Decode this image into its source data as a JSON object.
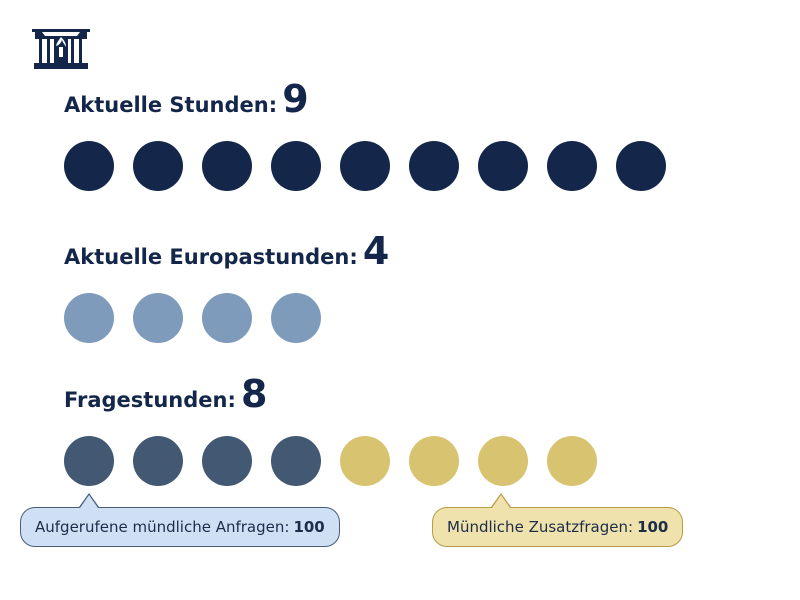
{
  "colors": {
    "navy": "#14274a",
    "light_blue": "#7f9bbb",
    "slate": "#435873",
    "gold": "#d8c371",
    "callout_blue_fill": "#cfe0f4",
    "callout_blue_border": "#4a5c79",
    "callout_gold_fill": "#efe2ac",
    "callout_gold_border": "#b79b45"
  },
  "icons": {
    "logo": "parliament-building-icon"
  },
  "chart_data": {
    "type": "dot-matrix",
    "sections": [
      {
        "label": "Aktuelle Stunden:",
        "value": 9,
        "groups": [
          {
            "count": 9,
            "color": "#14274a"
          }
        ]
      },
      {
        "label": "Aktuelle Europastunden:",
        "value": 4,
        "groups": [
          {
            "count": 4,
            "color": "#7f9bbb"
          }
        ]
      },
      {
        "label": "Fragestunden:",
        "value": 8,
        "groups": [
          {
            "count": 4,
            "color": "#435873",
            "callout_label": "Aufgerufene mündliche Anfragen:",
            "callout_value": 100
          },
          {
            "count": 4,
            "color": "#d8c371",
            "callout_label": "Mündliche Zusatzfragen:",
            "callout_value": 100
          }
        ]
      }
    ]
  }
}
